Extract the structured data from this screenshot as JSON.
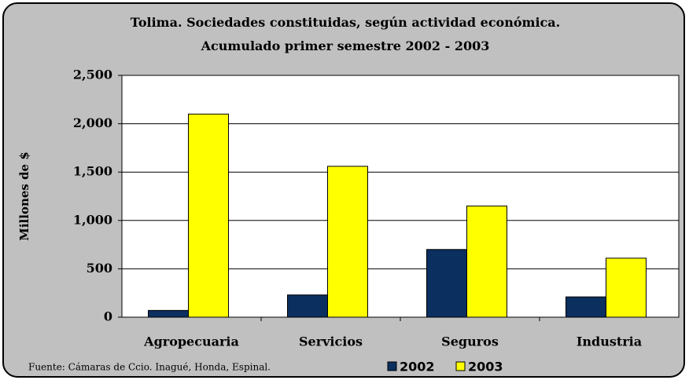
{
  "chart_data": {
    "type": "bar",
    "title": "Tolima. Sociedades constituidas, según actividad económica. Acumulado primer semestre 2002 - 2003",
    "y_label": "Millones de $",
    "source": "Fuente: Cámaras de Ccio. Inagué, Honda, Espinal.",
    "categories": [
      "Agropecuaria",
      "Servicios",
      "Seguros",
      "Industria"
    ],
    "series": [
      {
        "name": "2002",
        "color": "#0b2f5f",
        "values": [
          70,
          230,
          700,
          210
        ]
      },
      {
        "name": "2003",
        "color": "#ffff00",
        "values": [
          2100,
          1560,
          1150,
          610
        ]
      }
    ],
    "ylim": [
      0,
      2500
    ],
    "yticks": [
      0,
      500,
      {
        "value": 1000,
        "label": "1,000"
      },
      {
        "value": 1500,
        "label": "1,500"
      },
      {
        "value": 2000,
        "label": "2,000"
      },
      {
        "value": 2500,
        "label": "2,500"
      }
    ],
    "grid": true,
    "legend": "bottom"
  }
}
